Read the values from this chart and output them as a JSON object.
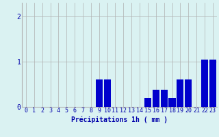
{
  "hours": [
    0,
    1,
    2,
    3,
    4,
    5,
    6,
    7,
    8,
    9,
    10,
    11,
    12,
    13,
    14,
    15,
    16,
    17,
    18,
    19,
    20,
    21,
    22,
    23
  ],
  "values": [
    0.0,
    0.0,
    0.0,
    0.0,
    0.0,
    0.0,
    0.0,
    0.0,
    0.0,
    0.6,
    0.6,
    0.0,
    0.0,
    0.0,
    0.0,
    0.2,
    0.38,
    0.38,
    0.2,
    0.6,
    0.6,
    0.0,
    1.05,
    1.05
  ],
  "bar_color": "#0000cc",
  "bg_color": "#daf2f2",
  "grid_color": "#b0b0b0",
  "axis_color": "#0000aa",
  "xlabel": "Précipitations 1h ( mm )",
  "xlabel_fontsize": 7,
  "tick_fontsize": 6,
  "ytick_fontsize": 7,
  "yticks": [
    0,
    1,
    2
  ],
  "ylim": [
    0,
    2.3
  ],
  "xlim": [
    -0.5,
    23.5
  ]
}
